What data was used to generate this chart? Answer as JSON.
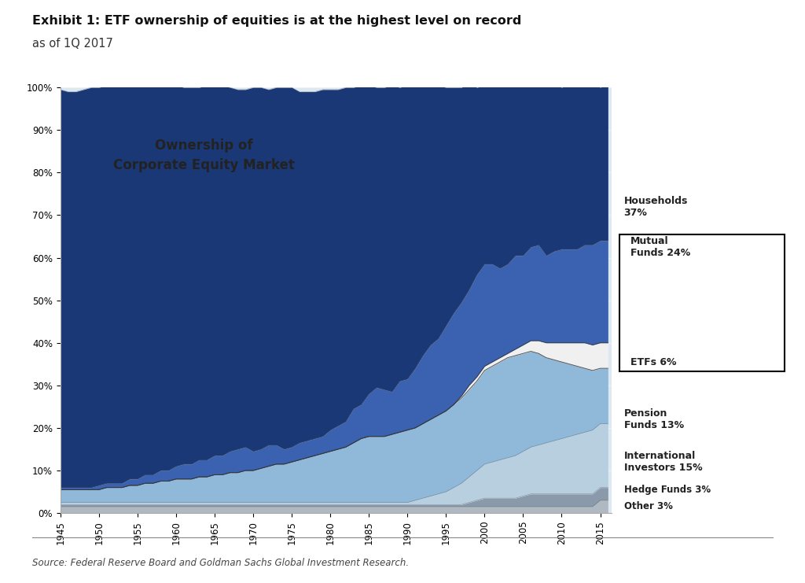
{
  "title_line1": "Exhibit 1: ETF ownership of equities is at the highest level on record",
  "title_line2": "as of 1Q 2017",
  "chart_label": "Ownership of\nCorporate Equity Market",
  "source": "Source: Federal Reserve Board and Goldman Sachs Global Investment Research.",
  "years": [
    1945,
    1946,
    1947,
    1948,
    1949,
    1950,
    1951,
    1952,
    1953,
    1954,
    1955,
    1956,
    1957,
    1958,
    1959,
    1960,
    1961,
    1962,
    1963,
    1964,
    1965,
    1966,
    1967,
    1968,
    1969,
    1970,
    1971,
    1972,
    1973,
    1974,
    1975,
    1976,
    1977,
    1978,
    1979,
    1980,
    1981,
    1982,
    1983,
    1984,
    1985,
    1986,
    1987,
    1988,
    1989,
    1990,
    1991,
    1992,
    1993,
    1994,
    1995,
    1996,
    1997,
    1998,
    1999,
    2000,
    2001,
    2002,
    2003,
    2004,
    2005,
    2006,
    2007,
    2008,
    2009,
    2010,
    2011,
    2012,
    2013,
    2014,
    2015,
    2016
  ],
  "other": [
    1.5,
    1.5,
    1.5,
    1.5,
    1.5,
    1.5,
    1.5,
    1.5,
    1.5,
    1.5,
    1.5,
    1.5,
    1.5,
    1.5,
    1.5,
    1.5,
    1.5,
    1.5,
    1.5,
    1.5,
    1.5,
    1.5,
    1.5,
    1.5,
    1.5,
    1.5,
    1.5,
    1.5,
    1.5,
    1.5,
    1.5,
    1.5,
    1.5,
    1.5,
    1.5,
    1.5,
    1.5,
    1.5,
    1.5,
    1.5,
    1.5,
    1.5,
    1.5,
    1.5,
    1.5,
    1.5,
    1.5,
    1.5,
    1.5,
    1.5,
    1.5,
    1.5,
    1.5,
    1.5,
    1.5,
    1.5,
    1.5,
    1.5,
    1.5,
    1.5,
    1.5,
    1.5,
    1.5,
    1.5,
    1.5,
    1.5,
    1.5,
    1.5,
    1.5,
    1.5,
    3.0,
    3.0
  ],
  "hedge_funds": [
    0.5,
    0.5,
    0.5,
    0.5,
    0.5,
    0.5,
    0.5,
    0.5,
    0.5,
    0.5,
    0.5,
    0.5,
    0.5,
    0.5,
    0.5,
    0.5,
    0.5,
    0.5,
    0.5,
    0.5,
    0.5,
    0.5,
    0.5,
    0.5,
    0.5,
    0.5,
    0.5,
    0.5,
    0.5,
    0.5,
    0.5,
    0.5,
    0.5,
    0.5,
    0.5,
    0.5,
    0.5,
    0.5,
    0.5,
    0.5,
    0.5,
    0.5,
    0.5,
    0.5,
    0.5,
    0.5,
    0.5,
    0.5,
    0.5,
    0.5,
    0.5,
    0.5,
    0.5,
    1.0,
    1.5,
    2.0,
    2.0,
    2.0,
    2.0,
    2.0,
    2.5,
    3.0,
    3.0,
    3.0,
    3.0,
    3.0,
    3.0,
    3.0,
    3.0,
    3.0,
    3.0,
    3.0
  ],
  "international": [
    0.5,
    0.5,
    0.5,
    0.5,
    0.5,
    0.5,
    0.5,
    0.5,
    0.5,
    0.5,
    0.5,
    0.5,
    0.5,
    0.5,
    0.5,
    0.5,
    0.5,
    0.5,
    0.5,
    0.5,
    0.5,
    0.5,
    0.5,
    0.5,
    0.5,
    0.5,
    0.5,
    0.5,
    0.5,
    0.5,
    0.5,
    0.5,
    0.5,
    0.5,
    0.5,
    0.5,
    0.5,
    0.5,
    0.5,
    0.5,
    0.5,
    0.5,
    0.5,
    0.5,
    0.5,
    0.5,
    1.0,
    1.5,
    2.0,
    2.5,
    3.0,
    4.0,
    5.0,
    6.0,
    7.0,
    8.0,
    8.5,
    9.0,
    9.5,
    10.0,
    10.5,
    11.0,
    11.5,
    12.0,
    12.5,
    13.0,
    13.5,
    14.0,
    14.5,
    15.0,
    15.0,
    15.0
  ],
  "pension": [
    3.0,
    3.0,
    3.0,
    3.0,
    3.0,
    3.0,
    3.5,
    3.5,
    3.5,
    4.0,
    4.0,
    4.5,
    4.5,
    5.0,
    5.0,
    5.5,
    5.5,
    5.5,
    6.0,
    6.0,
    6.5,
    6.5,
    7.0,
    7.0,
    7.5,
    7.5,
    8.0,
    8.5,
    9.0,
    9.0,
    9.5,
    10.0,
    10.5,
    11.0,
    11.5,
    12.0,
    12.5,
    13.0,
    14.0,
    15.0,
    15.5,
    15.5,
    15.5,
    16.0,
    16.5,
    17.0,
    17.0,
    17.5,
    18.0,
    18.5,
    19.0,
    19.5,
    20.0,
    20.5,
    21.0,
    22.0,
    22.5,
    23.0,
    23.5,
    23.5,
    23.0,
    22.5,
    21.5,
    20.0,
    19.0,
    18.0,
    17.0,
    16.0,
    15.0,
    14.0,
    13.0,
    13.0
  ],
  "etfs": [
    0.0,
    0.0,
    0.0,
    0.0,
    0.0,
    0.0,
    0.0,
    0.0,
    0.0,
    0.0,
    0.0,
    0.0,
    0.0,
    0.0,
    0.0,
    0.0,
    0.0,
    0.0,
    0.0,
    0.0,
    0.0,
    0.0,
    0.0,
    0.0,
    0.0,
    0.0,
    0.0,
    0.0,
    0.0,
    0.0,
    0.0,
    0.0,
    0.0,
    0.0,
    0.0,
    0.0,
    0.0,
    0.0,
    0.0,
    0.0,
    0.0,
    0.0,
    0.0,
    0.0,
    0.0,
    0.0,
    0.0,
    0.0,
    0.0,
    0.0,
    0.0,
    0.0,
    0.5,
    1.0,
    1.0,
    1.0,
    1.0,
    1.0,
    1.0,
    1.5,
    2.0,
    2.5,
    3.0,
    3.5,
    4.0,
    4.5,
    5.0,
    5.5,
    6.0,
    6.0,
    6.0,
    6.0
  ],
  "mutual_funds": [
    0.5,
    0.5,
    0.5,
    0.5,
    0.5,
    1.0,
    1.0,
    1.0,
    1.0,
    1.5,
    1.5,
    2.0,
    2.0,
    2.5,
    2.5,
    3.0,
    3.5,
    3.5,
    4.0,
    4.0,
    4.5,
    4.5,
    5.0,
    5.5,
    5.5,
    4.5,
    4.5,
    5.0,
    4.5,
    3.5,
    3.5,
    4.0,
    4.0,
    4.0,
    4.0,
    5.0,
    5.5,
    6.0,
    8.0,
    8.0,
    10.0,
    11.5,
    11.0,
    10.0,
    12.0,
    12.0,
    14.0,
    16.0,
    17.5,
    18.0,
    20.0,
    21.5,
    22.0,
    22.5,
    24.0,
    24.0,
    23.0,
    21.0,
    21.0,
    22.0,
    21.0,
    22.0,
    22.5,
    20.5,
    21.5,
    22.0,
    22.0,
    22.0,
    23.0,
    23.5,
    24.0,
    24.0
  ],
  "households": [
    93.5,
    93.0,
    93.0,
    93.5,
    94.0,
    93.5,
    93.5,
    93.5,
    93.5,
    92.5,
    92.5,
    91.5,
    91.5,
    90.5,
    90.5,
    89.5,
    88.5,
    88.5,
    87.5,
    88.0,
    87.0,
    87.0,
    85.5,
    84.5,
    84.0,
    85.5,
    85.0,
    83.5,
    84.0,
    85.0,
    84.5,
    82.5,
    82.0,
    81.5,
    81.5,
    80.0,
    79.0,
    78.5,
    75.5,
    75.0,
    72.5,
    70.5,
    71.0,
    72.0,
    69.0,
    69.0,
    66.5,
    63.5,
    61.5,
    59.5,
    56.0,
    53.0,
    50.5,
    48.5,
    44.0,
    42.0,
    42.5,
    43.0,
    43.0,
    40.5,
    40.5,
    39.5,
    38.5,
    40.5,
    39.5,
    38.0,
    39.0,
    39.5,
    38.5,
    38.5,
    36.0,
    37.0
  ],
  "colors": {
    "other": "#b0b8c2",
    "hedge_funds": "#8a9aaa",
    "international": "#b8cfe0",
    "pension": "#90b8d8",
    "etfs": "#f0f0f0",
    "mutual_funds": "#3a62b0",
    "households": "#1a3875"
  },
  "plot_bg": "#dce8f2",
  "fig_bg": "#ffffff",
  "ylim": [
    0,
    100
  ],
  "ytick_vals": [
    0,
    10,
    20,
    30,
    40,
    50,
    60,
    70,
    80,
    90,
    100
  ],
  "xtick_vals": [
    1945,
    1950,
    1955,
    1960,
    1965,
    1970,
    1975,
    1980,
    1985,
    1990,
    1995,
    2000,
    2005,
    2010,
    2015
  ]
}
